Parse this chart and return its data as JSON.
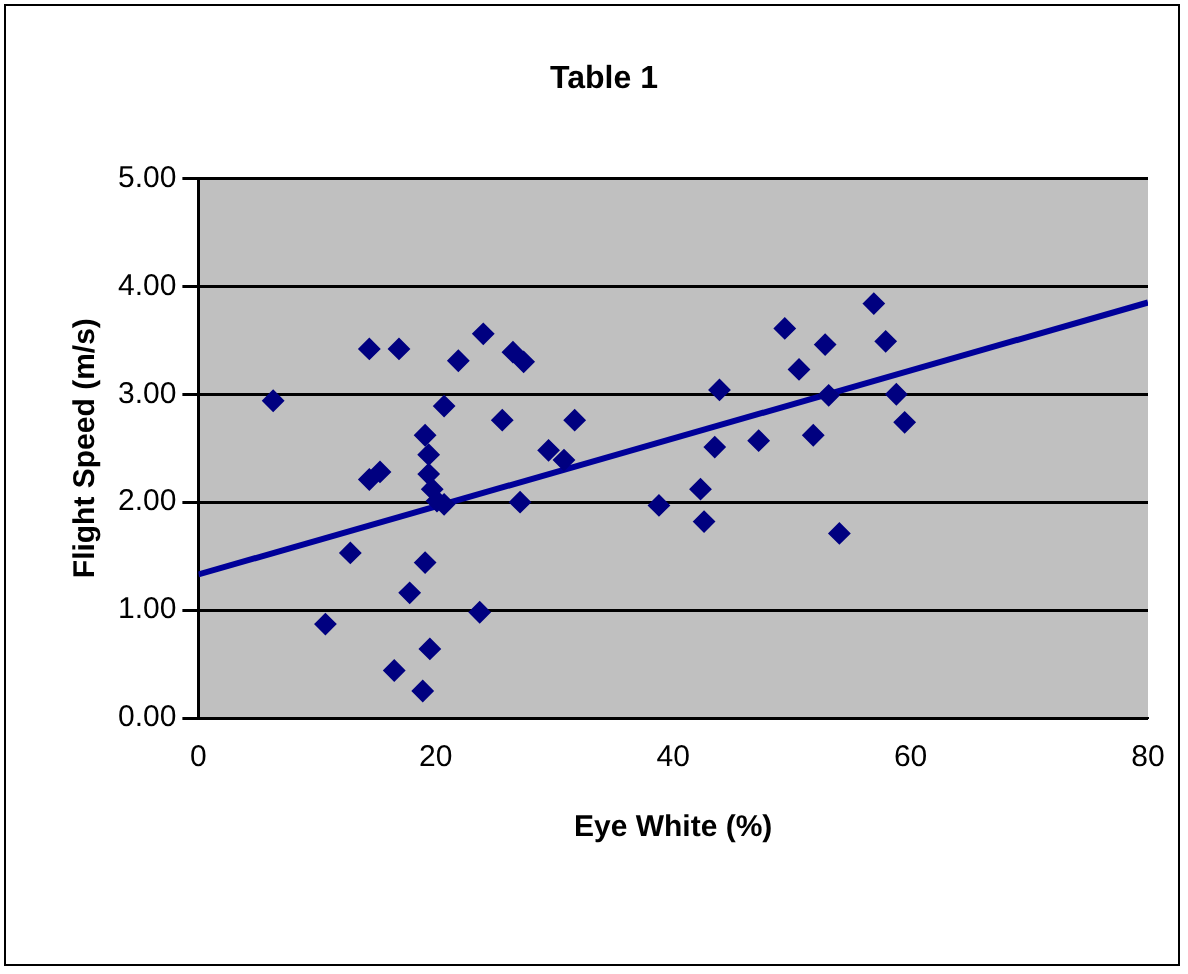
{
  "chart_data": {
    "type": "scatter",
    "title": "Table 1",
    "xlabel": "Eye White (%)",
    "ylabel": "Flight Speed (m/s)",
    "xlim": [
      0,
      80
    ],
    "xticks": [
      0,
      20,
      40,
      60,
      80
    ],
    "ylim": [
      0,
      5
    ],
    "yticks": [
      {
        "value": 0,
        "label": "0.00"
      },
      {
        "value": 1,
        "label": "1.00"
      },
      {
        "value": 2,
        "label": "2.00"
      },
      {
        "value": 3,
        "label": "3.00"
      },
      {
        "value": 4,
        "label": "4.00"
      },
      {
        "value": 5,
        "label": "5.00"
      }
    ],
    "grid": "y",
    "legend": false,
    "marker": "diamond",
    "series": [
      {
        "color": "#000080",
        "x": [
          6.3,
          14.4,
          16.9,
          24.0,
          21.9,
          26.5,
          27.4,
          20.7,
          25.6,
          31.7,
          19.1,
          19.4,
          29.5,
          30.8,
          14.4,
          15.3,
          19.4,
          19.7,
          20.1,
          20.7,
          27.1,
          38.8,
          12.8,
          19.1,
          17.8,
          23.7,
          10.7,
          19.5,
          16.5,
          18.9,
          42.3,
          42.6,
          43.5,
          43.9,
          47.2,
          49.4,
          50.6,
          52.8,
          51.8,
          53.1,
          54.0,
          56.9,
          57.9,
          58.8,
          59.5
        ],
        "values": [
          2.94,
          3.42,
          3.42,
          3.56,
          3.31,
          3.39,
          3.3,
          2.89,
          2.76,
          2.76,
          2.62,
          2.44,
          2.48,
          2.39,
          2.21,
          2.28,
          2.26,
          2.12,
          2.01,
          1.98,
          2.0,
          1.97,
          1.53,
          1.44,
          1.16,
          0.98,
          0.87,
          0.64,
          0.44,
          0.25,
          2.12,
          1.82,
          2.51,
          3.04,
          2.57,
          3.61,
          3.23,
          3.46,
          2.62,
          2.99,
          1.71,
          3.84,
          3.49,
          3.0,
          2.74
        ]
      },
      {
        "type": "line",
        "color": "#000099",
        "x": [
          0,
          80
        ],
        "values": [
          1.33,
          3.85
        ],
        "marker": "none",
        "line_style": "solid"
      }
    ]
  }
}
